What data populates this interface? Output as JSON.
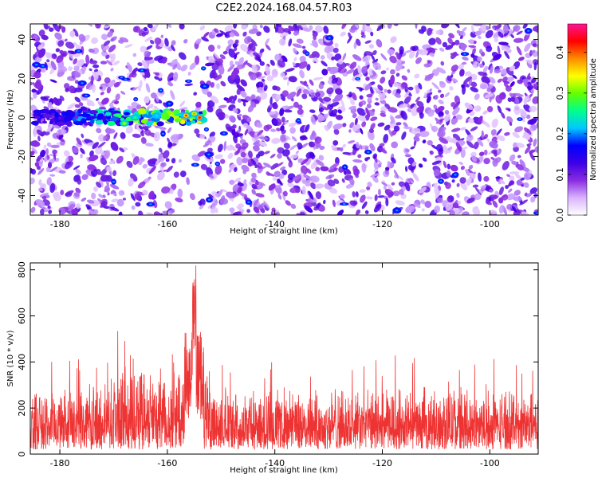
{
  "title": "C2E2.2024.168.04.57.R03",
  "chart_data": [
    {
      "type": "heatmap",
      "xlabel": "Height of straight line (km)",
      "ylabel": "Frequency (Hz)",
      "xlim": [
        -185.5,
        -91.0
      ],
      "ylim": [
        -50,
        48
      ],
      "xticks": [
        -180,
        -160,
        -140,
        -120,
        -100
      ],
      "yticks": [
        -40,
        -20,
        0,
        20,
        40
      ],
      "colorbar": {
        "label": "Normalized spectral amplitude",
        "range": [
          0.0,
          0.47
        ],
        "ticks": [
          0.0,
          0.1,
          0.2,
          0.3,
          0.4
        ],
        "colormap": [
          "#ffffff",
          "#d9b3ff",
          "#8a2be2",
          "#3c00e6",
          "#0000ff",
          "#00c8ff",
          "#00ff8c",
          "#64ff00",
          "#ffff00",
          "#ff8c00",
          "#ff0000",
          "#ff1493"
        ]
      },
      "grid": false,
      "features": [
        {
          "x_range": [
            -185,
            -153
          ],
          "frequency_hz": 0,
          "peak_amplitude": 0.45,
          "peak_x": -155
        }
      ]
    },
    {
      "type": "line",
      "xlabel": "Height of straight line (km)",
      "ylabel": "SNR (10 * v/v)",
      "xlim": [
        -185.5,
        -91.0
      ],
      "ylim": [
        0,
        830
      ],
      "xticks": [
        -180,
        -160,
        -140,
        -120,
        -100
      ],
      "yticks": [
        0,
        200,
        400,
        600,
        800
      ],
      "color": "#ee3333",
      "grid": false,
      "baseline_range": [
        20,
        300
      ],
      "peak": {
        "x": -155,
        "y": 830
      },
      "elevated_regions": [
        {
          "x_range": [
            -170,
            -152
          ],
          "max_y": 540
        }
      ]
    }
  ]
}
